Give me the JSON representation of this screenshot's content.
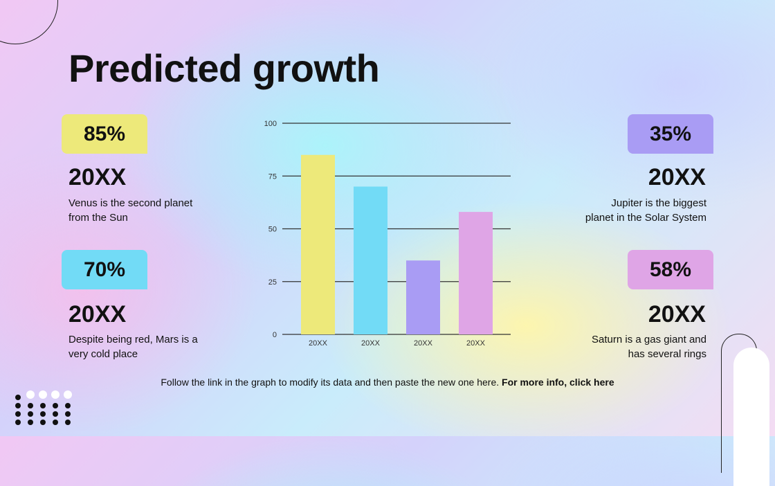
{
  "title": "Predicted growth",
  "left_cards": [
    {
      "percent": "85%",
      "year": "20XX",
      "desc_line1": "Venus is the second planet",
      "desc_line2": "from the Sun",
      "color": "#ede97a"
    },
    {
      "percent": "70%",
      "year": "20XX",
      "desc_line1": "Despite being red, Mars is a",
      "desc_line2": "very cold place",
      "color": "#72dbf6"
    }
  ],
  "right_cards": [
    {
      "percent": "35%",
      "year": "20XX",
      "desc_line1": "Jupiter is the biggest",
      "desc_line2": "planet in the Solar System",
      "color": "#a99cf4"
    },
    {
      "percent": "58%",
      "year": "20XX",
      "desc_line1": "Saturn is a gas giant and",
      "desc_line2": "has several rings",
      "color": "#dfa5e6"
    }
  ],
  "footer": {
    "text": "Follow the link in the graph to modify its data and then paste the new one here.",
    "link": "For more info, click here"
  },
  "chart_data": {
    "type": "bar",
    "categories": [
      "20XX",
      "20XX",
      "20XX",
      "20XX"
    ],
    "values": [
      85,
      70,
      35,
      58
    ],
    "colors": [
      "#ede97a",
      "#72dbf6",
      "#a99cf4",
      "#dfa5e6"
    ],
    "ylim": [
      0,
      100
    ],
    "yticks": [
      0,
      25,
      50,
      75,
      100
    ],
    "grid": true,
    "title": "",
    "xlabel": "",
    "ylabel": ""
  }
}
